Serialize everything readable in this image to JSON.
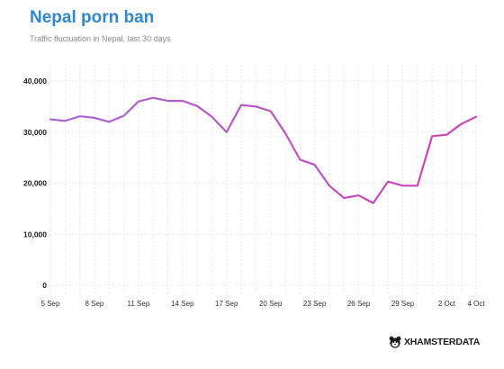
{
  "header": {
    "title": "Nepal porn ban",
    "subtitle": "Traffic fluctuation in Nepal, last 30 days"
  },
  "brand": {
    "text": "XHAMSTERDATA",
    "icon": "hamster-logo-icon"
  },
  "colors": {
    "title": "#2f86d1",
    "line_start": "#a868d4",
    "line_end": "#cd44b3",
    "grid": "#eaeaea"
  },
  "chart_data": {
    "type": "line",
    "title": "Nepal porn ban",
    "subtitle": "Traffic fluctuation in Nepal, last 30 days",
    "x": [
      "5 Sep",
      "6 Sep",
      "7 Sep",
      "8 Sep",
      "9 Sep",
      "10 Sep",
      "11 Sep",
      "12 Sep",
      "13 Sep",
      "14 Sep",
      "15 Sep",
      "16 Sep",
      "17 Sep",
      "18 Sep",
      "19 Sep",
      "20 Sep",
      "21 Sep",
      "22 Sep",
      "23 Sep",
      "24 Sep",
      "25 Sep",
      "26 Sep",
      "27 Sep",
      "28 Sep",
      "29 Sep",
      "30 Sep",
      "1 Oct",
      "2 Oct",
      "3 Oct",
      "4 Oct"
    ],
    "values": [
      32500,
      32200,
      33100,
      32800,
      32000,
      33200,
      36000,
      36700,
      36100,
      36100,
      35100,
      33000,
      30000,
      35300,
      35000,
      34100,
      29800,
      24600,
      23600,
      19500,
      17100,
      17600,
      16100,
      20300,
      19500,
      19500,
      29200,
      29500,
      31600,
      33000
    ],
    "xticks": [
      "5 Sep",
      "8 Sep",
      "11 Sep",
      "14 Sep",
      "17 Sep",
      "20 Sep",
      "23 Sep",
      "26 Sep",
      "29 Sep",
      "2 Oct",
      "4 Oct"
    ],
    "yticks": [
      "0",
      "10,000",
      "20,000",
      "30,000",
      "40,000"
    ],
    "ylim": [
      0,
      40000
    ],
    "grid": true,
    "legend": "none"
  }
}
